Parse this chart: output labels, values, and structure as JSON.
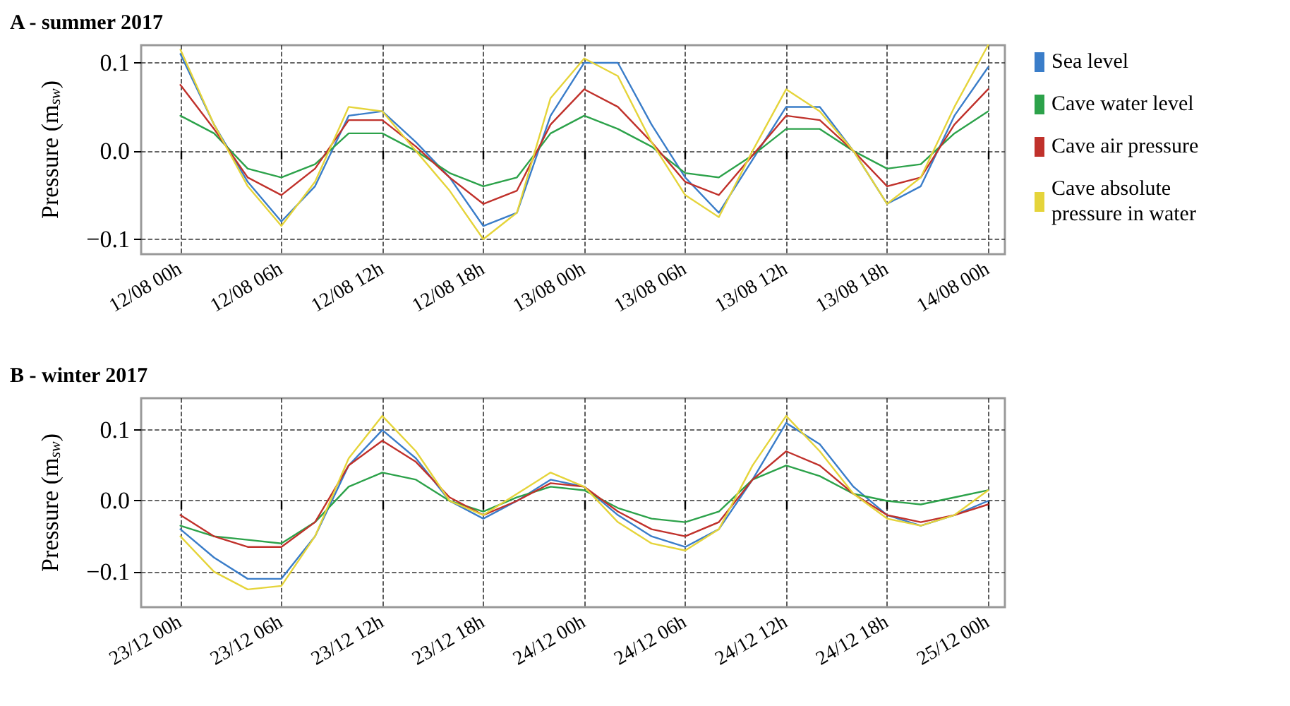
{
  "chart_data": [
    {
      "type": "line",
      "title": "A - summer 2017",
      "ylabel": "Pressure (m$_{sw}$)",
      "legend": "right",
      "grid": true,
      "line_style": "solid",
      "marker": "none",
      "x": [
        "2017-08-12T00:00",
        "2017-08-12T02:00",
        "2017-08-12T04:00",
        "2017-08-12T06:00",
        "2017-08-12T08:00",
        "2017-08-12T10:00",
        "2017-08-12T12:00",
        "2017-08-12T14:00",
        "2017-08-12T16:00",
        "2017-08-12T18:00",
        "2017-08-12T20:00",
        "2017-08-12T22:00",
        "2017-08-13T00:00",
        "2017-08-13T02:00",
        "2017-08-13T04:00",
        "2017-08-13T06:00",
        "2017-08-13T08:00",
        "2017-08-13T10:00",
        "2017-08-13T12:00",
        "2017-08-13T14:00",
        "2017-08-13T16:00",
        "2017-08-13T18:00",
        "2017-08-13T20:00",
        "2017-08-13T22:00",
        "2017-08-14T00:00"
      ],
      "xlim": [
        "2017-08-11T21:40",
        "2017-08-14T01:00"
      ],
      "xticks": [
        {
          "value": "2017-08-12T00:00",
          "label": "12/08 00h"
        },
        {
          "value": "2017-08-12T06:00",
          "label": "12/08 06h"
        },
        {
          "value": "2017-08-12T12:00",
          "label": "12/08 12h"
        },
        {
          "value": "2017-08-12T18:00",
          "label": "12/08 18h"
        },
        {
          "value": "2017-08-13T00:00",
          "label": "13/08 00h"
        },
        {
          "value": "2017-08-13T06:00",
          "label": "13/08 06h"
        },
        {
          "value": "2017-08-13T12:00",
          "label": "13/08 12h"
        },
        {
          "value": "2017-08-13T18:00",
          "label": "13/08 18h"
        },
        {
          "value": "2017-08-14T00:00",
          "label": "14/08 00h"
        }
      ],
      "ylim": [
        -0.117,
        0.12
      ],
      "yticks": [
        {
          "value": -0.1,
          "label": "−0.1"
        },
        {
          "value": 0,
          "label": "0.0"
        },
        {
          "value": 0.1,
          "label": "0.1"
        }
      ],
      "series": [
        {
          "name": "Sea level",
          "color": "#3a7dc9",
          "values": [
            0.11,
            0.03,
            -0.035,
            -0.08,
            -0.04,
            0.04,
            0.045,
            0.01,
            -0.03,
            -0.085,
            -0.07,
            0.04,
            0.1,
            0.1,
            0.03,
            -0.03,
            -0.07,
            -0.01,
            0.05,
            0.05,
            0.0,
            -0.06,
            -0.04,
            0.04,
            0.095
          ]
        },
        {
          "name": "Cave water level",
          "color": "#2ca24a",
          "values": [
            0.04,
            0.02,
            -0.02,
            -0.03,
            -0.015,
            0.02,
            0.02,
            0.0,
            -0.025,
            -0.04,
            -0.03,
            0.02,
            0.04,
            0.025,
            0.005,
            -0.025,
            -0.03,
            -0.005,
            0.025,
            0.025,
            0.0,
            -0.02,
            -0.015,
            0.02,
            0.045
          ]
        },
        {
          "name": "Cave air pressure",
          "color": "#c0312b",
          "values": [
            0.075,
            0.025,
            -0.03,
            -0.05,
            -0.02,
            0.035,
            0.035,
            0.005,
            -0.03,
            -0.06,
            -0.045,
            0.03,
            0.07,
            0.05,
            0.01,
            -0.035,
            -0.05,
            -0.005,
            0.04,
            0.035,
            0.0,
            -0.04,
            -0.03,
            0.03,
            0.07
          ]
        },
        {
          "name": "Cave absolute pressure in water",
          "color": "#e5d43a",
          "values": [
            0.115,
            0.03,
            -0.04,
            -0.085,
            -0.035,
            0.05,
            0.045,
            0.0,
            -0.045,
            -0.1,
            -0.07,
            0.06,
            0.105,
            0.085,
            0.01,
            -0.05,
            -0.075,
            0.0,
            0.07,
            0.045,
            0.0,
            -0.06,
            -0.03,
            0.05,
            0.12
          ]
        }
      ]
    },
    {
      "type": "line",
      "title": "B - winter 2017",
      "ylabel": "Pressure (m$_{sw}$)",
      "legend": false,
      "grid": true,
      "line_style": "solid",
      "marker": "none",
      "x": [
        "2017-12-23T00:00",
        "2017-12-23T02:00",
        "2017-12-23T04:00",
        "2017-12-23T06:00",
        "2017-12-23T08:00",
        "2017-12-23T10:00",
        "2017-12-23T12:00",
        "2017-12-23T14:00",
        "2017-12-23T16:00",
        "2017-12-23T18:00",
        "2017-12-23T20:00",
        "2017-12-23T22:00",
        "2017-12-24T00:00",
        "2017-12-24T02:00",
        "2017-12-24T04:00",
        "2017-12-24T06:00",
        "2017-12-24T08:00",
        "2017-12-24T10:00",
        "2017-12-24T12:00",
        "2017-12-24T14:00",
        "2017-12-24T16:00",
        "2017-12-24T18:00",
        "2017-12-24T20:00",
        "2017-12-24T22:00",
        "2017-12-25T00:00"
      ],
      "xlim": [
        "2017-12-22T21:40",
        "2017-12-25T01:00"
      ],
      "xticks": [
        {
          "value": "2017-12-23T00:00",
          "label": "23/12 00h"
        },
        {
          "value": "2017-12-23T06:00",
          "label": "23/12 06h"
        },
        {
          "value": "2017-12-23T12:00",
          "label": "23/12 12h"
        },
        {
          "value": "2017-12-23T18:00",
          "label": "23/12 18h"
        },
        {
          "value": "2017-12-24T00:00",
          "label": "24/12 00h"
        },
        {
          "value": "2017-12-24T06:00",
          "label": "24/12 06h"
        },
        {
          "value": "2017-12-24T12:00",
          "label": "24/12 12h"
        },
        {
          "value": "2017-12-24T18:00",
          "label": "24/12 18h"
        },
        {
          "value": "2017-12-25T00:00",
          "label": "25/12 00h"
        }
      ],
      "ylim": [
        -0.15,
        0.145
      ],
      "yticks": [
        {
          "value": -0.1,
          "label": "−0.1"
        },
        {
          "value": 0,
          "label": "0.0"
        },
        {
          "value": 0.1,
          "label": "0.1"
        }
      ],
      "series": [
        {
          "color": "#3a7dc9",
          "values": [
            -0.04,
            -0.08,
            -0.11,
            -0.11,
            -0.05,
            0.05,
            0.1,
            0.06,
            0.0,
            -0.025,
            0.0,
            0.03,
            0.02,
            -0.02,
            -0.05,
            -0.065,
            -0.04,
            0.03,
            0.11,
            0.08,
            0.02,
            -0.02,
            -0.035,
            -0.02,
            0.0
          ]
        },
        {
          "color": "#2ca24a",
          "values": [
            -0.035,
            -0.05,
            -0.055,
            -0.06,
            -0.03,
            0.02,
            0.04,
            0.03,
            0.0,
            -0.015,
            0.005,
            0.02,
            0.015,
            -0.01,
            -0.025,
            -0.03,
            -0.015,
            0.03,
            0.05,
            0.035,
            0.01,
            0.0,
            -0.005,
            0.005,
            0.015
          ]
        },
        {
          "color": "#c0312b",
          "values": [
            -0.02,
            -0.05,
            -0.065,
            -0.065,
            -0.03,
            0.05,
            0.085,
            0.055,
            0.005,
            -0.02,
            0.0,
            0.025,
            0.02,
            -0.015,
            -0.04,
            -0.05,
            -0.03,
            0.03,
            0.07,
            0.05,
            0.01,
            -0.02,
            -0.03,
            -0.02,
            -0.005
          ]
        },
        {
          "color": "#e5d43a",
          "values": [
            -0.05,
            -0.1,
            -0.125,
            -0.12,
            -0.05,
            0.06,
            0.12,
            0.07,
            0.0,
            -0.02,
            0.01,
            0.04,
            0.02,
            -0.03,
            -0.06,
            -0.07,
            -0.04,
            0.05,
            0.12,
            0.07,
            0.01,
            -0.025,
            -0.035,
            -0.02,
            0.015
          ]
        }
      ]
    }
  ]
}
